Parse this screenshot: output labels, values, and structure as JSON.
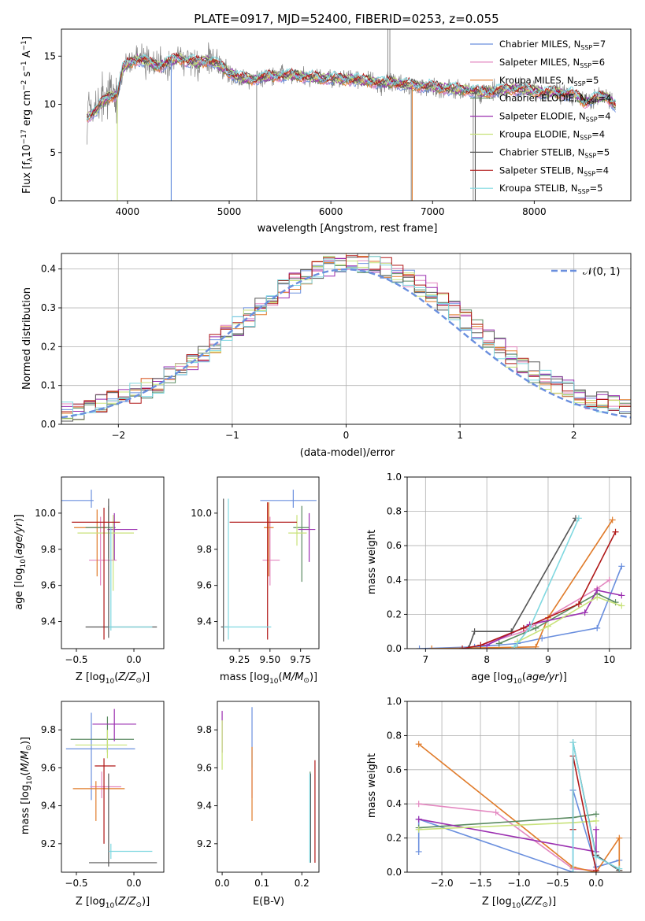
{
  "figure": {
    "title": "PLATE=0917, MJD=52400, FIBERID=0253, z=0.055",
    "colors": [
      "#6a8fde",
      "#e387c0",
      "#e07b2a",
      "#5a8a60",
      "#9b2fb0",
      "#c8e27a",
      "#555555",
      "#b01818",
      "#7fd8e0"
    ],
    "series_names": [
      {
        "pre": "Chabrier MILES, N",
        "sub": "SSP",
        "post": "=7"
      },
      {
        "pre": "Salpeter MILES, N",
        "sub": "SSP",
        "post": "=6"
      },
      {
        "pre": "Kroupa MILES, N",
        "sub": "SSP",
        "post": "=5"
      },
      {
        "pre": "Chabrier ELODIE, N",
        "sub": "SSP",
        "post": "=4"
      },
      {
        "pre": "Salpeter ELODIE, N",
        "sub": "SSP",
        "post": "=4"
      },
      {
        "pre": "Kroupa ELODIE, N",
        "sub": "SSP",
        "post": "=4"
      },
      {
        "pre": "Chabrier STELIB, N",
        "sub": "SSP",
        "post": "=5"
      },
      {
        "pre": "Salpeter STELIB, N",
        "sub": "SSP",
        "post": "=4"
      },
      {
        "pre": "Kroupa STELIB, N",
        "sub": "SSP",
        "post": "=5"
      }
    ]
  },
  "chart_data": [
    {
      "id": "spectrum",
      "type": "line",
      "xlabel": "wavelength [Angstrom, rest frame]",
      "ylabel": "Flux [f_λ10^-17 erg cm^-2 s^-1 A^-1]",
      "xlim": [
        3350,
        8950
      ],
      "ylim": [
        0,
        17.8
      ],
      "xticks": [
        4000,
        5000,
        6000,
        7000,
        8000
      ],
      "yticks": [
        0,
        5,
        10,
        15
      ],
      "grid": false,
      "legend": "top-right",
      "data_color": "#808080",
      "continuum_points": {
        "x": [
          3600,
          3700,
          3800,
          3900,
          3950,
          4000,
          4100,
          4200,
          4300,
          4400,
          4500,
          4600,
          4700,
          4800,
          4900,
          5000,
          5100,
          5200,
          5300,
          5400,
          5500,
          5600,
          5700,
          5800,
          5900,
          6000,
          6100,
          6200,
          6300,
          6400,
          6500,
          6600,
          6700,
          6800,
          6900,
          7000,
          7100,
          7200,
          7300,
          7400,
          7500,
          7600,
          7700,
          7800,
          7900,
          8000,
          8100,
          8200,
          8300,
          8400,
          8500,
          8600,
          8700,
          8800
        ],
        "y": [
          8.6,
          9.5,
          10.7,
          11.0,
          13.6,
          14.2,
          14.7,
          14.4,
          13.9,
          14.4,
          14.8,
          14.5,
          14.3,
          14.6,
          14.1,
          13.3,
          12.8,
          12.6,
          12.7,
          12.9,
          13.0,
          13.0,
          12.9,
          12.8,
          12.7,
          12.7,
          12.6,
          12.6,
          12.5,
          12.4,
          12.2,
          12.3,
          12.1,
          12.0,
          11.9,
          11.8,
          11.7,
          11.6,
          11.5,
          11.4,
          11.2,
          11.4,
          11.5,
          11.6,
          11.5,
          11.4,
          11.2,
          11.3,
          11.1,
          11.0,
          10.2,
          10.6,
          10.9,
          9.9
        ]
      }
    },
    {
      "id": "residuals",
      "type": "histogram",
      "xlabel": "(data-model)/error",
      "ylabel": "Normed distribution",
      "xlim": [
        -2.5,
        2.5
      ],
      "ylim": [
        0,
        0.44
      ],
      "xticks": [
        -2,
        -1,
        0,
        1,
        2
      ],
      "yticks": [
        0.0,
        0.1,
        0.2,
        0.3,
        0.4
      ],
      "grid": true,
      "bin_width": 0.1,
      "reference": {
        "name": "𝒩(0, 1)",
        "mu": 0,
        "sigma": 1,
        "color": "#6a8fde"
      },
      "legend": "top-right"
    },
    {
      "id": "age_vs_Z",
      "type": "errorbar",
      "xlabel": "Z [log10(Z/Z⊙)]",
      "ylabel": "age  [log10(age/yr)]",
      "xlim": [
        -0.63,
        0.26
      ],
      "ylim": [
        9.25,
        10.2
      ],
      "xticks": [
        -0.5,
        0.0
      ],
      "yticks": [
        9.4,
        9.6,
        9.8,
        10.0
      ],
      "grid": false,
      "points": [
        {
          "x": -0.37,
          "y": 10.07,
          "xerr": [
            0.4,
            0.02
          ],
          "yerr": [
            0.04,
            0.06
          ]
        },
        {
          "x": -0.29,
          "y": 9.74,
          "xerr": [
            0.1,
            0.14
          ],
          "yerr": [
            0.14,
            0.24
          ]
        },
        {
          "x": -0.32,
          "y": 9.92,
          "xerr": [
            0.2,
            0.08
          ],
          "yerr": [
            0.27,
            0.1
          ]
        },
        {
          "x": -0.22,
          "y": 9.92,
          "xerr": [
            0.2,
            0.06
          ],
          "yerr": [
            0.17,
            0.12
          ]
        },
        {
          "x": -0.17,
          "y": 9.91,
          "xerr": [
            0.06,
            0.2
          ],
          "yerr": [
            0.17,
            0.09
          ]
        },
        {
          "x": -0.18,
          "y": 9.89,
          "xerr": [
            0.31,
            0.18
          ],
          "yerr": [
            0.32,
            0.1
          ]
        },
        {
          "x": -0.22,
          "y": 9.37,
          "xerr": [
            0.2,
            0.42
          ],
          "yerr": [
            0.06,
            0.71
          ]
        },
        {
          "x": -0.26,
          "y": 9.95,
          "xerr": [
            0.28,
            0.14
          ],
          "yerr": [
            0.65,
            0.08
          ]
        },
        {
          "x": -0.2,
          "y": 9.37,
          "xerr": [
            0.02,
            0.36
          ],
          "yerr": [
            0.02,
            0.55
          ]
        }
      ]
    },
    {
      "id": "age_vs_mass",
      "type": "errorbar",
      "xlabel": "mass [log10(M/M⊙)]",
      "ylabel": "",
      "xlim": [
        9.07,
        9.9
      ],
      "ylim": [
        9.25,
        10.2
      ],
      "xticks": [
        9.25,
        9.5,
        9.75
      ],
      "yticks": [
        9.4,
        9.6,
        9.8,
        10.0
      ],
      "grid": false,
      "points": [
        {
          "x": 9.69,
          "y": 10.07,
          "xerr": [
            0.27,
            0.19
          ],
          "yerr": [
            0.04,
            0.06
          ]
        },
        {
          "x": 9.5,
          "y": 9.74,
          "xerr": [
            0.06,
            0.08
          ],
          "yerr": [
            0.14,
            0.24
          ]
        },
        {
          "x": 9.49,
          "y": 9.92,
          "xerr": [
            0.04,
            0.04
          ],
          "yerr": [
            0.27,
            0.14
          ]
        },
        {
          "x": 9.76,
          "y": 9.92,
          "xerr": [
            0.07,
            0.06
          ],
          "yerr": [
            0.3,
            0.12
          ]
        },
        {
          "x": 9.82,
          "y": 9.91,
          "xerr": [
            0.09,
            0.05
          ],
          "yerr": [
            0.18,
            0.09
          ]
        },
        {
          "x": 9.72,
          "y": 9.89,
          "xerr": [
            0.07,
            0.08
          ],
          "yerr": [
            0.07,
            0.1
          ]
        },
        {
          "x": 9.12,
          "y": 9.37,
          "xerr": [
            0.02,
            0.04
          ],
          "yerr": [
            0.08,
            0.71
          ]
        },
        {
          "x": 9.48,
          "y": 9.95,
          "xerr": [
            0.31,
            0.24
          ],
          "yerr": [
            0.65,
            0.11
          ]
        },
        {
          "x": 9.16,
          "y": 9.37,
          "xerr": [
            0.04,
            0.35
          ],
          "yerr": [
            0.07,
            0.71
          ]
        }
      ]
    },
    {
      "id": "weight_vs_age",
      "type": "line",
      "xlabel": "age  [log10(age/yr)]",
      "ylabel": "mass weight",
      "xlim": [
        6.7,
        10.35
      ],
      "ylim": [
        0,
        1.0
      ],
      "xticks": [
        7,
        8,
        9,
        10
      ],
      "yticks": [
        0.0,
        0.2,
        0.4,
        0.6,
        0.8,
        1.0
      ],
      "grid": true,
      "series": [
        {
          "x": [
            6.9,
            7.8,
            8.5,
            8.9,
            9.8,
            10.2
          ],
          "y": [
            0.0,
            0.01,
            0.03,
            0.06,
            0.12,
            0.48
          ]
        },
        {
          "x": [
            7.9,
            8.6,
            9.8,
            10.0
          ],
          "y": [
            0.02,
            0.1,
            0.35,
            0.4
          ]
        },
        {
          "x": [
            7.1,
            8.8,
            9.0,
            10.05
          ],
          "y": [
            0.0,
            0.01,
            0.18,
            0.75
          ]
        },
        {
          "x": [
            8.2,
            8.8,
            9.8,
            10.1
          ],
          "y": [
            0.03,
            0.12,
            0.32,
            0.27
          ]
        },
        {
          "x": [
            8.0,
            8.7,
            9.6,
            9.8,
            10.2
          ],
          "y": [
            0.02,
            0.14,
            0.21,
            0.34,
            0.31
          ]
        },
        {
          "x": [
            8.5,
            9.0,
            9.8,
            10.2
          ],
          "y": [
            0.04,
            0.13,
            0.3,
            0.25
          ]
        },
        {
          "x": [
            7.7,
            7.8,
            8.4,
            9.45
          ],
          "y": [
            0.0,
            0.1,
            0.1,
            0.76
          ]
        },
        {
          "x": [
            7.6,
            7.9,
            8.6,
            9.5,
            10.1
          ],
          "y": [
            0.0,
            0.02,
            0.12,
            0.26,
            0.68
          ]
        },
        {
          "x": [
            8.45,
            8.7,
            9.5
          ],
          "y": [
            0.01,
            0.12,
            0.76
          ]
        }
      ]
    },
    {
      "id": "mass_vs_Z",
      "type": "errorbar",
      "xlabel": "Z [log10(Z/Z⊙)]",
      "ylabel": "mass [log10(M/M⊙)]",
      "xlim": [
        -0.63,
        0.26
      ],
      "ylim": [
        9.05,
        9.95
      ],
      "xticks": [
        -0.5,
        0.0
      ],
      "yticks": [
        9.2,
        9.4,
        9.6,
        9.8
      ],
      "grid": false,
      "points": [
        {
          "x": -0.37,
          "y": 9.7,
          "xerr": [
            0.22,
            0.38
          ],
          "yerr": [
            0.27,
            0.19
          ]
        },
        {
          "x": -0.28,
          "y": 9.5,
          "xerr": [
            0.1,
            0.17
          ],
          "yerr": [
            0.06,
            0.08
          ]
        },
        {
          "x": -0.33,
          "y": 9.49,
          "xerr": [
            0.2,
            0.25
          ],
          "yerr": [
            0.17,
            0.04
          ]
        },
        {
          "x": -0.23,
          "y": 9.75,
          "xerr": [
            0.32,
            0.23
          ],
          "yerr": [
            0.07,
            0.12
          ]
        },
        {
          "x": -0.17,
          "y": 9.83,
          "xerr": [
            0.19,
            0.19
          ],
          "yerr": [
            0.09,
            0.08
          ]
        },
        {
          "x": -0.23,
          "y": 9.72,
          "xerr": [
            0.28,
            0.17
          ],
          "yerr": [
            0.07,
            0.08
          ]
        },
        {
          "x": -0.22,
          "y": 9.1,
          "xerr": [
            0.17,
            0.42
          ],
          "yerr": [
            0.02,
            0.47
          ]
        },
        {
          "x": -0.26,
          "y": 9.61,
          "xerr": [
            0.08,
            0.1
          ],
          "yerr": [
            0.41,
            0.04
          ]
        },
        {
          "x": -0.2,
          "y": 9.16,
          "xerr": [
            0.02,
            0.36
          ],
          "yerr": [
            0.04,
            0.04
          ]
        }
      ]
    },
    {
      "id": "mass_vs_ebv",
      "type": "errorbar",
      "xlabel": "E(B-V)",
      "ylabel": "",
      "xlim": [
        -0.012,
        0.243
      ],
      "ylim": [
        9.05,
        9.95
      ],
      "xticks": [
        0.0,
        0.1,
        0.2
      ],
      "yticks": [
        9.2,
        9.4,
        9.6,
        9.8
      ],
      "grid": false,
      "points": [
        {
          "x": 0.075,
          "y": 9.7,
          "xerr": [
            0,
            0
          ],
          "yerr": [
            0.1,
            0.22
          ]
        },
        {
          "x": 0.075,
          "y": 9.5,
          "xerr": [
            0,
            0
          ],
          "yerr": [
            0.06,
            0.1
          ]
        },
        {
          "x": 0.075,
          "y": 9.49,
          "xerr": [
            0,
            0
          ],
          "yerr": [
            0.17,
            0.22
          ]
        },
        {
          "x": 0.221,
          "y": 9.3,
          "xerr": [
            0,
            0
          ],
          "yerr": [
            0.2,
            0.28
          ]
        },
        {
          "x": 0.0,
          "y": 9.8,
          "xerr": [
            0,
            0
          ],
          "yerr": [
            0.12,
            0.1
          ]
        },
        {
          "x": 0.0,
          "y": 9.7,
          "xerr": [
            0,
            0
          ],
          "yerr": [
            0.11,
            0.15
          ]
        },
        {
          "x": 0.222,
          "y": 9.3,
          "xerr": [
            0,
            0
          ],
          "yerr": [
            0.2,
            0.27
          ]
        },
        {
          "x": 0.233,
          "y": 9.35,
          "xerr": [
            0,
            0
          ],
          "yerr": [
            0.25,
            0.29
          ]
        },
        {
          "x": 0.22,
          "y": 9.3,
          "xerr": [
            0,
            0
          ],
          "yerr": [
            0.2,
            0.27
          ]
        }
      ]
    },
    {
      "id": "weight_vs_Z",
      "type": "line",
      "xlabel": "Z [log10(Z/Z⊙)]",
      "ylabel": "mass weight",
      "xlim": [
        -2.45,
        0.45
      ],
      "ylim": [
        0,
        1.0
      ],
      "xticks": [
        -2.0,
        -1.5,
        -1.0,
        -0.5,
        0.0
      ],
      "yticks": [
        0.0,
        0.2,
        0.4,
        0.6,
        0.8,
        1.0
      ],
      "grid": true,
      "series": [
        {
          "x": [
            -2.3,
            -2.3,
            -0.3,
            -0.3,
            0.0,
            0.3
          ],
          "y": [
            0.12,
            0.31,
            0.0,
            0.48,
            0.03,
            0.07
          ]
        },
        {
          "x": [
            -2.3,
            -1.3,
            -0.3,
            0.0
          ],
          "y": [
            0.4,
            0.35,
            0.02,
            0.01
          ]
        },
        {
          "x": [
            -2.3,
            -0.3,
            0.0,
            0.3,
            0.3
          ],
          "y": [
            0.75,
            0.03,
            0.0,
            0.2,
            0.01
          ]
        },
        {
          "x": [
            -2.3,
            -0.3,
            0.0
          ],
          "y": [
            0.26,
            0.32,
            0.34
          ]
        },
        {
          "x": [
            -2.3,
            0.0,
            0.0
          ],
          "y": [
            0.31,
            0.12,
            0.25
          ]
        },
        {
          "x": [
            -2.3,
            -0.3,
            0.0
          ],
          "y": [
            0.25,
            0.29,
            0.3
          ]
        },
        {
          "x": [
            -0.3,
            0.0,
            0.3
          ],
          "y": [
            0.76,
            0.1,
            0.01
          ]
        },
        {
          "x": [
            -0.3,
            -0.3,
            0.0
          ],
          "y": [
            0.25,
            0.68,
            0.01
          ]
        },
        {
          "x": [
            -0.3,
            -0.3,
            0.0,
            0.3
          ],
          "y": [
            0.0,
            0.76,
            0.09,
            0.02
          ]
        }
      ]
    }
  ]
}
